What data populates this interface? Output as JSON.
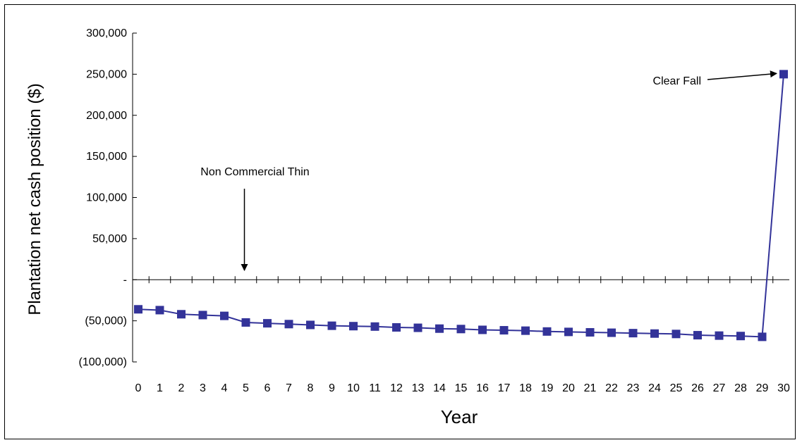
{
  "chart_data": {
    "type": "line",
    "xlabel": "Year",
    "ylabel": "Plantation net cash position ($)",
    "ylim": [
      -100000,
      300000
    ],
    "yticks": [
      300000,
      250000,
      200000,
      150000,
      100000,
      50000,
      0,
      -50000,
      -100000
    ],
    "ytick_labels": [
      "300,000",
      "250,000",
      "200,000",
      "150,000",
      "100,000",
      "50,000",
      "-",
      "(50,000)",
      "(100,000)"
    ],
    "xlim": [
      0,
      30
    ],
    "x": [
      0,
      1,
      2,
      3,
      4,
      5,
      6,
      7,
      8,
      9,
      10,
      11,
      12,
      13,
      14,
      15,
      16,
      17,
      18,
      19,
      20,
      21,
      22,
      23,
      24,
      25,
      26,
      27,
      28,
      29,
      30
    ],
    "series": [
      {
        "values": [
          -36000,
          -37000,
          -42000,
          -43000,
          -44000,
          -52000,
          -53000,
          -54000,
          -55000,
          -56000,
          -56500,
          -57000,
          -58000,
          -58500,
          -59500,
          -60000,
          -61000,
          -61500,
          -62000,
          -63000,
          -63500,
          -64000,
          -64500,
          -65000,
          -65500,
          -66000,
          -67500,
          -68000,
          -68500,
          -69500,
          250000
        ],
        "color": "#333399"
      }
    ],
    "annotations": [
      {
        "text": "Non Commercial Thin",
        "x": 5,
        "y": 0
      },
      {
        "text": "Clear Fall",
        "x": 30,
        "y": 250000
      }
    ],
    "grid": false
  }
}
